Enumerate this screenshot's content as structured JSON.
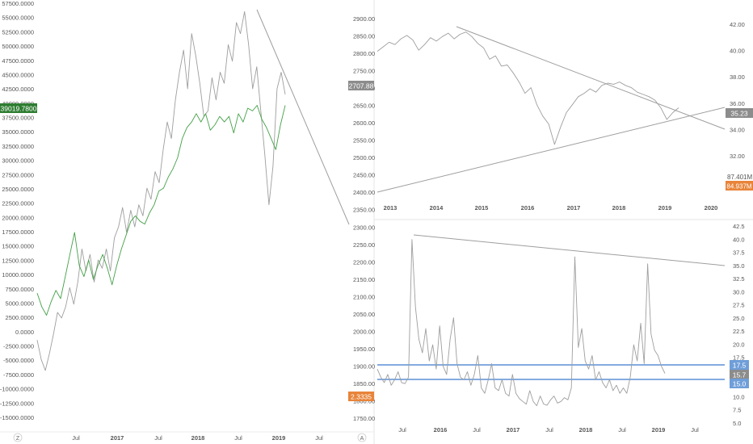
{
  "colors": {
    "price_line": "#9e9e9e",
    "green_line": "#43a047",
    "green_badge": "#2e7d32",
    "orange_badge": "#e8843a",
    "gray_badge": "#8c8c8c",
    "blue_line": "#5b8fd6",
    "blue_badge": "#6f9ed9",
    "axis_text": "#555555",
    "separator": "#e6e6e6"
  },
  "toolbar": {
    "z_label": "Z",
    "a_label": "A"
  },
  "chart_data": [
    {
      "id": "left",
      "type": "line",
      "series": [
        {
          "values": [
            -3500,
            -7000,
            -9000,
            -6000,
            -2500,
            1500,
            500,
            2500,
            6000,
            3000,
            7000,
            13000,
            9000,
            12000,
            7000,
            11000,
            9500,
            13000,
            9000,
            15000,
            17000,
            20500,
            16000,
            20000,
            17000,
            21000,
            19000,
            24000,
            22000,
            27000,
            25000,
            31000,
            36000,
            33000,
            40000,
            45000,
            49000,
            42000,
            52000,
            48000,
            43000,
            37000,
            38000,
            44000,
            40000,
            45000,
            43000,
            50000,
            47000,
            54000,
            52000,
            56000,
            50000,
            42000,
            46000,
            38000,
            30000,
            21000,
            28000,
            42000,
            45000,
            41000
          ]
        },
        {
          "values": [
            5000,
            2500,
            1000,
            3500,
            5500,
            4000,
            8000,
            12000,
            16000,
            10000,
            8000,
            11000,
            7500,
            10000,
            12000,
            9500,
            6500,
            10000,
            13000,
            15500,
            18000,
            19000,
            18000,
            17500,
            19500,
            21000,
            23500,
            24000,
            26000,
            27500,
            29500,
            33000,
            35000,
            36000,
            37500,
            36000,
            37500,
            34500,
            35500,
            37000,
            36000,
            37000,
            34000,
            37500,
            36000,
            38500,
            38000,
            39000,
            36500,
            35000,
            33000,
            31000,
            35500,
            39000
          ]
        }
      ],
      "left_axis": {
        "ylim": [
          -17500,
          57500
        ],
        "ticks": [
          "57500.0000",
          "55000.0000",
          "52500.0000",
          "50000.0000",
          "47500.0000",
          "45000.0000",
          "42500.0000",
          "40000.0000",
          "37500.0000",
          "35000.0000",
          "32500.0000",
          "30000.0000",
          "27500.0000",
          "25000.0000",
          "22500.0000",
          "20000.0000",
          "17500.0000",
          "15000.0000",
          "12500.0000",
          "10000.0000",
          "7500.0000",
          "5000.0000",
          "2500.0000",
          "0.0000",
          "-2500.0000",
          "-5000.0000",
          "-7500.0000",
          "-10000.0000",
          "-12500.0000",
          "-15000.0000"
        ],
        "badge": "39019.7800"
      },
      "right_axis": {
        "ylim": [
          1707.5,
          2930
        ],
        "ticks": [
          "2900.00",
          "2850.00",
          "2800.00",
          "2750.00",
          "2700.00",
          "2650.00",
          "2600.00",
          "2550.00",
          "2500.00",
          "2450.00",
          "2400.00",
          "2350.00",
          "2300.00",
          "2250.00",
          "2200.00",
          "2150.00",
          "2100.00",
          "2050.00",
          "2000.00",
          "1950.00",
          "1900.00",
          "1850.00",
          "1800.00",
          "1750.00"
        ],
        "badge_gray": "2707.88",
        "badge_orange": "2.3335"
      },
      "x_ticks": [
        "Jul",
        "2017",
        "Jul",
        "2018",
        "Jul",
        "2019",
        "Jul"
      ]
    },
    {
      "id": "top-right",
      "type": "line",
      "values": [
        40.2,
        40.6,
        41.0,
        40.8,
        41.3,
        41.6,
        41.2,
        40.3,
        40.8,
        41.4,
        41.1,
        41.5,
        41.8,
        41.3,
        41.7,
        41.9,
        41.5,
        40.9,
        40.5,
        39.5,
        39.8,
        38.9,
        39.0,
        38.3,
        37.5,
        36.5,
        37.0,
        35.5,
        34.5,
        33.8,
        32.0,
        33.5,
        34.8,
        35.5,
        36.2,
        36.5,
        36.9,
        36.6,
        37.2,
        37.4,
        37.3,
        37.5,
        37.2,
        37.0,
        36.6,
        36.4,
        36.2,
        35.9,
        35.2,
        34.2,
        34.8,
        35.23
      ],
      "ylim": [
        30.5,
        43.3
      ],
      "ticks": [
        "42.00",
        "40.00",
        "38.00",
        "36.00",
        "34.00",
        "32.00"
      ],
      "badge_gray": "35.23",
      "volume_label": "87.401M",
      "badge_orange": "84.937M",
      "x_ticks": [
        "2013",
        "2014",
        "2015",
        "2016",
        "2017",
        "2018",
        "2019",
        "2020"
      ]
    },
    {
      "id": "bottom-right",
      "type": "line",
      "values": [
        16.5,
        15.0,
        14.0,
        15.5,
        13.5,
        14.5,
        16.0,
        14.0,
        13.8,
        15.0,
        40.5,
        28.0,
        22.0,
        19.5,
        24.0,
        18.0,
        21.0,
        16.5,
        24.5,
        17.0,
        15.5,
        22.0,
        26.0,
        17.5,
        15.0,
        14.5,
        16.0,
        13.5,
        15.5,
        19.0,
        13.0,
        12.0,
        14.5,
        17.5,
        13.0,
        12.5,
        14.5,
        12.0,
        11.5,
        15.5,
        12.0,
        11.0,
        10.5,
        10.0,
        12.5,
        10.5,
        9.7,
        11.5,
        10.0,
        9.8,
        10.8,
        11.5,
        10.2,
        10.5,
        11.2,
        10.8,
        13.0,
        37.3,
        20.5,
        24.0,
        18.0,
        16.5,
        19.0,
        14.5,
        16.0,
        14.0,
        13.0,
        14.5,
        12.5,
        13.5,
        12.0,
        13.0,
        12.0,
        15.0,
        21.0,
        18.0,
        25.0,
        17.5,
        36.0,
        23.0,
        20.0,
        19.0,
        17.0,
        15.7
      ],
      "ylim": [
        6.5,
        43.0
      ],
      "ticks": [
        "42.5",
        "40.0",
        "37.5",
        "35.0",
        "32.5",
        "30.0",
        "27.5",
        "25.0",
        "22.5",
        "20.0",
        "17.5",
        "15.0",
        "12.5",
        "10.0",
        "7.5",
        "5.0"
      ],
      "badge_upper": "17.5",
      "badge_last": "15.7",
      "badge_lower": "15.0",
      "x_ticks": [
        "Jul",
        "2016",
        "Jul",
        "2017",
        "Jul",
        "2018",
        "Jul",
        "2019",
        "Jul"
      ]
    }
  ]
}
